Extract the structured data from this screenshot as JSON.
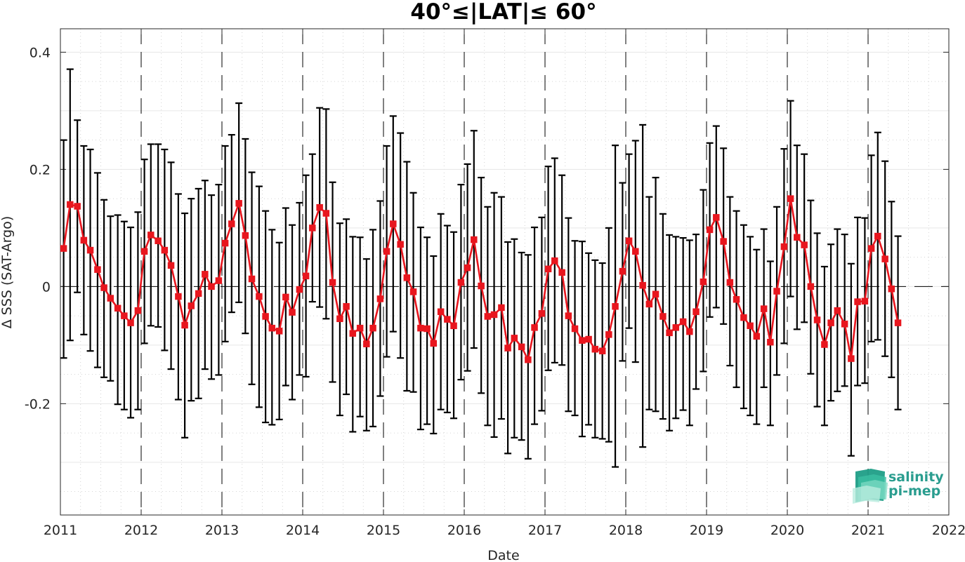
{
  "chart_data": {
    "type": "line",
    "title": "40°≤|LAT|≤ 60°",
    "xlabel": "Date",
    "ylabel": "Δ SSS (SAT-Argo)",
    "xlim": [
      2011,
      2022
    ],
    "ylim": [
      -0.39,
      0.44
    ],
    "x_ticks": [
      "2011",
      "2012",
      "2013",
      "2014",
      "2015",
      "2016",
      "2017",
      "2018",
      "2019",
      "2020",
      "2021",
      "2022"
    ],
    "y_ticks": [
      {
        "value": 0.4,
        "label": "0.4"
      },
      {
        "value": 0.2,
        "label": "0.2"
      },
      {
        "value": 0,
        "label": "0"
      },
      {
        "value": -0.2,
        "label": "-0.2"
      }
    ],
    "grid": true,
    "year_boundary_lines": true,
    "series": [
      {
        "color": "#e8161e",
        "marker": "square",
        "x": [
          2011.04,
          2011.12,
          2011.21,
          2011.29,
          2011.37,
          2011.46,
          2011.54,
          2011.62,
          2011.71,
          2011.79,
          2011.87,
          2011.96,
          2012.04,
          2012.12,
          2012.21,
          2012.29,
          2012.37,
          2012.46,
          2012.54,
          2012.62,
          2012.71,
          2012.79,
          2012.87,
          2012.96,
          2013.04,
          2013.12,
          2013.21,
          2013.29,
          2013.37,
          2013.46,
          2013.54,
          2013.62,
          2013.71,
          2013.79,
          2013.87,
          2013.96,
          2014.04,
          2014.12,
          2014.21,
          2014.29,
          2014.37,
          2014.46,
          2014.54,
          2014.62,
          2014.71,
          2014.79,
          2014.87,
          2014.96,
          2015.04,
          2015.12,
          2015.21,
          2015.29,
          2015.37,
          2015.46,
          2015.54,
          2015.62,
          2015.71,
          2015.79,
          2015.87,
          2015.96,
          2016.04,
          2016.12,
          2016.21,
          2016.29,
          2016.37,
          2016.46,
          2016.54,
          2016.62,
          2016.71,
          2016.79,
          2016.87,
          2016.96,
          2017.04,
          2017.12,
          2017.21,
          2017.29,
          2017.37,
          2017.46,
          2017.54,
          2017.62,
          2017.71,
          2017.79,
          2017.87,
          2017.96,
          2018.04,
          2018.12,
          2018.21,
          2018.29,
          2018.37,
          2018.46,
          2018.54,
          2018.62,
          2018.71,
          2018.79,
          2018.87,
          2018.96,
          2019.04,
          2019.12,
          2019.21,
          2019.29,
          2019.37,
          2019.46,
          2019.54,
          2019.62,
          2019.71,
          2019.79,
          2019.87,
          2019.96,
          2020.04,
          2020.12,
          2020.21,
          2020.29,
          2020.37,
          2020.46,
          2020.54,
          2020.62,
          2020.71,
          2020.79,
          2020.87,
          2020.96,
          2021.04,
          2021.12,
          2021.21,
          2021.29,
          2021.37
        ],
        "y": [
          0.065,
          0.14,
          0.137,
          0.079,
          0.062,
          0.029,
          -0.002,
          -0.02,
          -0.037,
          -0.05,
          -0.062,
          -0.041,
          0.06,
          0.088,
          0.078,
          0.062,
          0.036,
          -0.017,
          -0.066,
          -0.033,
          -0.012,
          0.021,
          0.0,
          0.01,
          0.074,
          0.107,
          0.142,
          0.087,
          0.013,
          -0.017,
          -0.051,
          -0.071,
          -0.076,
          -0.018,
          -0.044,
          -0.005,
          0.018,
          0.1,
          0.135,
          0.125,
          0.007,
          -0.055,
          -0.034,
          -0.08,
          -0.071,
          -0.098,
          -0.071,
          -0.021,
          0.06,
          0.107,
          0.072,
          0.015,
          -0.009,
          -0.071,
          -0.072,
          -0.097,
          -0.043,
          -0.056,
          -0.067,
          0.007,
          0.032,
          0.08,
          0.001,
          -0.051,
          -0.048,
          -0.036,
          -0.105,
          -0.088,
          -0.103,
          -0.125,
          -0.07,
          -0.046,
          0.03,
          0.044,
          0.024,
          -0.05,
          -0.072,
          -0.092,
          -0.09,
          -0.107,
          -0.11,
          -0.082,
          -0.034,
          0.026,
          0.078,
          0.06,
          0.002,
          -0.03,
          -0.013,
          -0.051,
          -0.079,
          -0.07,
          -0.06,
          -0.077,
          -0.043,
          0.008,
          0.097,
          0.118,
          0.077,
          0.007,
          -0.022,
          -0.053,
          -0.067,
          -0.085,
          -0.038,
          -0.095,
          -0.008,
          0.068,
          0.15,
          0.084,
          0.071,
          0.0,
          -0.057,
          -0.099,
          -0.062,
          -0.041,
          -0.064,
          -0.123,
          -0.026,
          -0.025,
          0.065,
          0.086,
          0.047,
          -0.004,
          -0.062
        ],
        "err_low": [
          -0.122,
          -0.092,
          -0.01,
          -0.082,
          -0.11,
          -0.138,
          -0.155,
          -0.161,
          -0.201,
          -0.21,
          -0.224,
          -0.21,
          -0.097,
          -0.067,
          -0.069,
          -0.109,
          -0.141,
          -0.193,
          -0.258,
          -0.195,
          -0.191,
          -0.141,
          -0.158,
          -0.151,
          -0.094,
          -0.044,
          -0.027,
          -0.08,
          -0.167,
          -0.206,
          -0.232,
          -0.236,
          -0.227,
          -0.169,
          -0.193,
          -0.151,
          -0.154,
          -0.026,
          -0.035,
          -0.055,
          -0.163,
          -0.22,
          -0.184,
          -0.248,
          -0.222,
          -0.246,
          -0.239,
          -0.187,
          -0.12,
          -0.077,
          -0.122,
          -0.178,
          -0.18,
          -0.244,
          -0.235,
          -0.251,
          -0.21,
          -0.215,
          -0.225,
          -0.159,
          -0.144,
          -0.105,
          -0.182,
          -0.237,
          -0.257,
          -0.226,
          -0.285,
          -0.258,
          -0.262,
          -0.294,
          -0.235,
          -0.212,
          -0.143,
          -0.13,
          -0.134,
          -0.213,
          -0.22,
          -0.256,
          -0.236,
          -0.258,
          -0.26,
          -0.265,
          -0.308,
          -0.127,
          -0.071,
          -0.129,
          -0.274,
          -0.21,
          -0.213,
          -0.226,
          -0.246,
          -0.225,
          -0.211,
          -0.237,
          -0.175,
          -0.145,
          -0.052,
          -0.036,
          -0.064,
          -0.135,
          -0.172,
          -0.208,
          -0.22,
          -0.235,
          -0.172,
          -0.237,
          -0.151,
          -0.097,
          -0.017,
          -0.073,
          -0.061,
          -0.149,
          -0.205,
          -0.237,
          -0.195,
          -0.179,
          -0.17,
          -0.289,
          -0.169,
          -0.165,
          -0.094,
          -0.091,
          -0.119,
          -0.155,
          -0.21
        ],
        "err_high": [
          0.25,
          0.371,
          0.284,
          0.24,
          0.234,
          0.194,
          0.148,
          0.12,
          0.122,
          0.111,
          0.101,
          0.127,
          0.217,
          0.243,
          0.243,
          0.234,
          0.212,
          0.158,
          0.125,
          0.15,
          0.167,
          0.181,
          0.156,
          0.174,
          0.24,
          0.259,
          0.313,
          0.252,
          0.195,
          0.171,
          0.129,
          0.097,
          0.075,
          0.134,
          0.105,
          0.143,
          0.19,
          0.226,
          0.305,
          0.303,
          0.178,
          0.108,
          0.115,
          0.085,
          0.084,
          0.047,
          0.097,
          0.146,
          0.24,
          0.291,
          0.262,
          0.213,
          0.16,
          0.101,
          0.084,
          0.052,
          0.124,
          0.104,
          0.093,
          0.174,
          0.209,
          0.266,
          0.186,
          0.136,
          0.16,
          0.153,
          0.076,
          0.081,
          0.058,
          0.054,
          0.101,
          0.118,
          0.205,
          0.219,
          0.19,
          0.117,
          0.078,
          0.077,
          0.057,
          0.045,
          0.04,
          0.1,
          0.241,
          0.177,
          0.226,
          0.249,
          0.276,
          0.153,
          0.186,
          0.124,
          0.088,
          0.085,
          0.083,
          0.079,
          0.089,
          0.165,
          0.245,
          0.274,
          0.236,
          0.153,
          0.129,
          0.105,
          0.085,
          0.063,
          0.098,
          0.043,
          0.136,
          0.235,
          0.317,
          0.241,
          0.226,
          0.147,
          0.091,
          0.034,
          0.072,
          0.098,
          0.089,
          0.039,
          0.118,
          0.117,
          0.224,
          0.263,
          0.214,
          0.145,
          0.086
        ]
      }
    ]
  },
  "logo": {
    "line1": "salinity",
    "line2": "pi-mep",
    "color": "#2a9d8f"
  }
}
